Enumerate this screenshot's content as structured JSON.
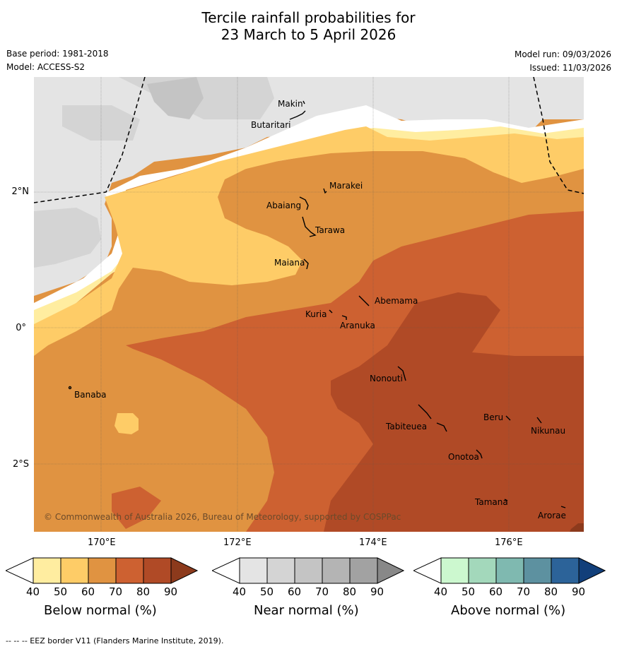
{
  "title": {
    "line1": "Tercile rainfall probabilities for",
    "line2": "23 March to 5 April 2026"
  },
  "meta": {
    "base_period": "Base period: 1981-2018",
    "model": "Model: ACCESS-S2",
    "model_run": "Model run: 09/03/2026",
    "issued": "Issued: 11/03/2026"
  },
  "axes": {
    "lat_ticks": [
      "2°N",
      "0°",
      "2°S"
    ],
    "lon_ticks": [
      "170°E",
      "172°E",
      "174°E",
      "176°E"
    ]
  },
  "places": [
    {
      "name": "Makin"
    },
    {
      "name": "Butaritari"
    },
    {
      "name": "Marakei"
    },
    {
      "name": "Abaiang"
    },
    {
      "name": "Tarawa"
    },
    {
      "name": "Maiana"
    },
    {
      "name": "Abemama"
    },
    {
      "name": "Kuria"
    },
    {
      "name": "Aranuka"
    },
    {
      "name": "Banaba"
    },
    {
      "name": "Nonouti"
    },
    {
      "name": "Beru"
    },
    {
      "name": "Nikunau"
    },
    {
      "name": "Tabiteuea"
    },
    {
      "name": "Onotoa"
    },
    {
      "name": "Tamana"
    },
    {
      "name": "Arorae"
    }
  ],
  "copyright": "© Commonwealth of Australia 2026, Bureau of Meteorology, supported by COSPPac",
  "colorbars": [
    {
      "title": "Below normal (%)",
      "ticks": [
        "40",
        "50",
        "60",
        "70",
        "80",
        "90"
      ],
      "colors": [
        "#ffeda0",
        "#fecc67",
        "#e09341",
        "#cd6131",
        "#b04a26",
        "#8c3a1c"
      ]
    },
    {
      "title": "Near normal (%)",
      "ticks": [
        "40",
        "50",
        "60",
        "70",
        "80",
        "90"
      ],
      "colors": [
        "#e4e4e4",
        "#d4d4d4",
        "#c4c4c4",
        "#b4b4b4",
        "#a2a2a2",
        "#888888"
      ]
    },
    {
      "title": "Above normal (%)",
      "ticks": [
        "40",
        "50",
        "60",
        "70",
        "80",
        "90"
      ],
      "colors": [
        "#ccf8cf",
        "#a3d8bb",
        "#7fb9b0",
        "#5d91a0",
        "#2c6399",
        "#123f7a"
      ]
    }
  ],
  "footer": "--  --  -- EEZ border V11 (Flanders Marine Institute, 2019).",
  "map_colors": {
    "white": "#ffffff",
    "near_40": "#e4e4e4",
    "near_50": "#d4d4d4",
    "near_60": "#c4c4c4",
    "below_40": "#ffeda0",
    "below_50": "#fecc67",
    "below_60": "#e09341",
    "below_70": "#cd6131",
    "below_80": "#b04a26"
  }
}
